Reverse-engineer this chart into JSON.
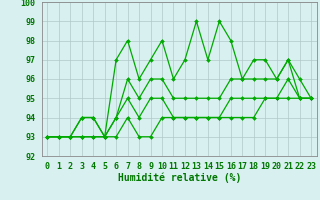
{
  "x": [
    0,
    1,
    2,
    3,
    4,
    5,
    6,
    7,
    8,
    9,
    10,
    11,
    12,
    13,
    14,
    15,
    16,
    17,
    18,
    19,
    20,
    21,
    22,
    23
  ],
  "series": [
    [
      93,
      93,
      93,
      94,
      94,
      93,
      97,
      98,
      96,
      97,
      98,
      96,
      97,
      99,
      97,
      99,
      98,
      96,
      97,
      97,
      96,
      97,
      95,
      95
    ],
    [
      93,
      93,
      93,
      93,
      93,
      93,
      94,
      96,
      95,
      96,
      96,
      95,
      95,
      95,
      95,
      95,
      96,
      96,
      96,
      96,
      96,
      97,
      96,
      95
    ],
    [
      93,
      93,
      93,
      94,
      94,
      93,
      94,
      95,
      94,
      95,
      95,
      94,
      94,
      94,
      94,
      94,
      95,
      95,
      95,
      95,
      95,
      96,
      95,
      95
    ],
    [
      93,
      93,
      93,
      93,
      93,
      93,
      93,
      94,
      93,
      93,
      94,
      94,
      94,
      94,
      94,
      94,
      94,
      94,
      94,
      95,
      95,
      95,
      95,
      95
    ]
  ],
  "line_color": "#00aa00",
  "marker": "D",
  "marker_size": 2,
  "bg_color": "#d8f0f0",
  "grid_color": "#b0c8c8",
  "xlabel": "Humidité relative (%)",
  "xlim": [
    -0.5,
    23.5
  ],
  "ylim": [
    92,
    100
  ],
  "yticks": [
    92,
    93,
    94,
    95,
    96,
    97,
    98,
    99,
    100
  ],
  "xticks": [
    0,
    1,
    2,
    3,
    4,
    5,
    6,
    7,
    8,
    9,
    10,
    11,
    12,
    13,
    14,
    15,
    16,
    17,
    18,
    19,
    20,
    21,
    22,
    23
  ],
  "tick_fontsize": 6,
  "xlabel_fontsize": 7,
  "linewidth": 0.9
}
